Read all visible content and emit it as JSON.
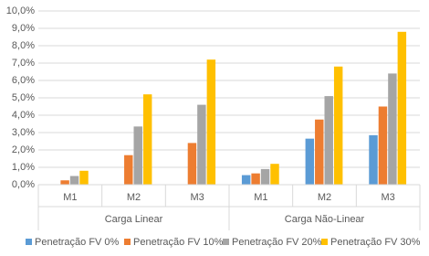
{
  "chart_data": {
    "type": "bar",
    "groups": [
      {
        "name": "Carga Linear",
        "categories": [
          "M1",
          "M2",
          "M3"
        ]
      },
      {
        "name": "Carga Não-Linear",
        "categories": [
          "M1",
          "M2",
          "M3"
        ]
      }
    ],
    "series": [
      {
        "name": "Penetração FV 0%",
        "color": "#5b9bd5",
        "values": [
          0,
          0,
          0,
          0.55,
          2.65,
          2.85
        ]
      },
      {
        "name": "Penetração FV 10%",
        "color": "#ed7d31",
        "values": [
          0.25,
          1.7,
          2.4,
          0.65,
          3.75,
          4.5
        ]
      },
      {
        "name": "Penetração FV 20%",
        "color": "#a5a5a5",
        "values": [
          0.5,
          3.35,
          4.6,
          0.9,
          5.1,
          6.4
        ]
      },
      {
        "name": "Penetração FV 30%",
        "color": "#ffc000",
        "values": [
          0.8,
          5.2,
          7.2,
          1.2,
          6.8,
          8.8
        ]
      }
    ],
    "ylim": [
      0,
      10
    ],
    "yticks": [
      {
        "value": 0,
        "label": "0,0%"
      },
      {
        "value": 1,
        "label": "1,0%"
      },
      {
        "value": 2,
        "label": "2,0%"
      },
      {
        "value": 3,
        "label": "3,0%"
      },
      {
        "value": 4,
        "label": "4,0%"
      },
      {
        "value": 5,
        "label": "5,0%"
      },
      {
        "value": 6,
        "label": "6,0%"
      },
      {
        "value": 7,
        "label": "7,0%"
      },
      {
        "value": 8,
        "label": "8,0%"
      },
      {
        "value": 9,
        "label": "9,0%"
      },
      {
        "value": 10,
        "label": "10,0%"
      }
    ],
    "grid": true,
    "legend": "bottom"
  }
}
